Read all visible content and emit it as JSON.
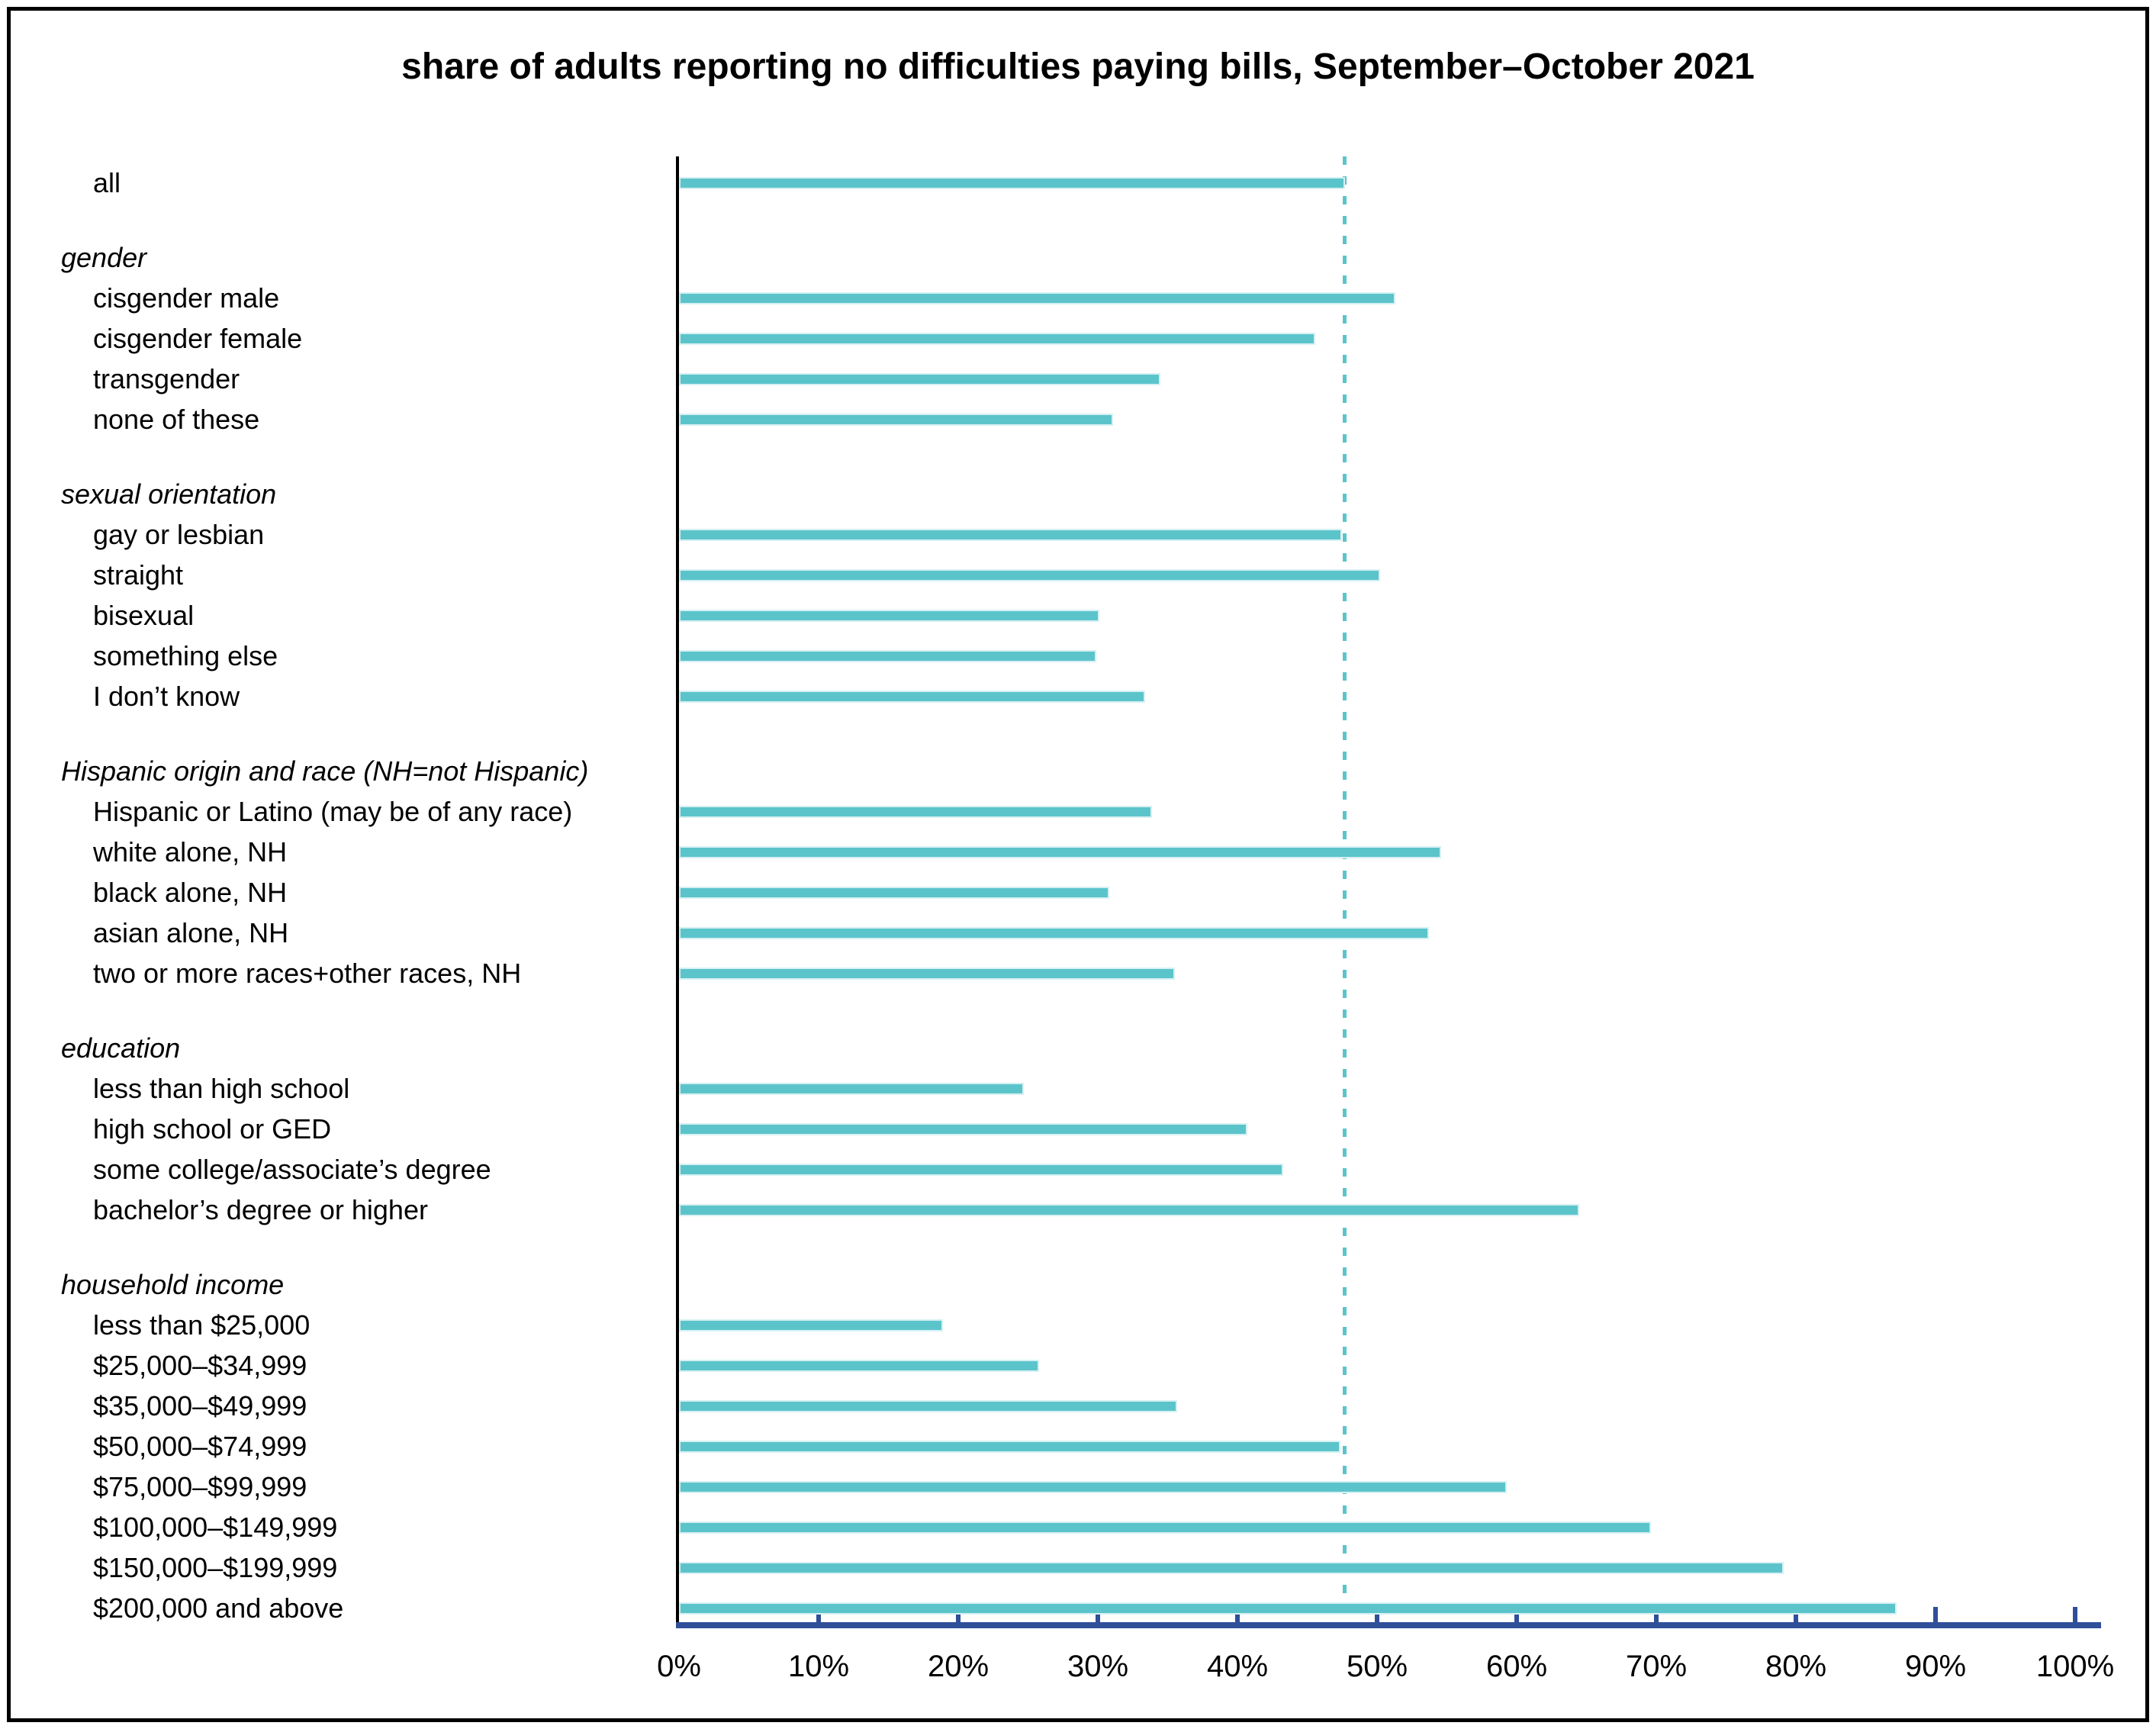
{
  "colors": {
    "bar": "#5bc4cb",
    "bar_edge": "#d6f0f2",
    "axis": "#2f4f99",
    "reference_line": "#5bc4cb",
    "spine": "#000000",
    "frame": "#000000",
    "text": "#000000"
  },
  "chart_data": {
    "type": "bar",
    "orientation": "horizontal",
    "title": "share of adults reporting no difficulties paying bills, September–October 2021",
    "unit": "percent",
    "xlim": [
      0,
      100
    ],
    "x_tick_labels": [
      "0%",
      "10%",
      "20%",
      "30%",
      "40%",
      "50%",
      "60%",
      "70%",
      "80%",
      "90%",
      "100%"
    ],
    "grid": false,
    "legend": "none",
    "reference_line_value": 47.7,
    "groups": [
      {
        "header": "",
        "items": [
          {
            "label": "all",
            "value": 47.7
          }
        ]
      },
      {
        "header": "gender",
        "items": [
          {
            "label": "cisgender male",
            "value": 51.3
          },
          {
            "label": "cisgender female",
            "value": 45.6
          },
          {
            "label": "transgender",
            "value": 34.5
          },
          {
            "label": "none of these",
            "value": 31.1
          }
        ]
      },
      {
        "header": "sexual orientation",
        "items": [
          {
            "label": "gay or lesbian",
            "value": 47.5
          },
          {
            "label": "straight",
            "value": 50.2
          },
          {
            "label": "bisexual",
            "value": 30.1
          },
          {
            "label": "something else",
            "value": 29.9
          },
          {
            "label": "I don’t know",
            "value": 33.4
          }
        ]
      },
      {
        "header": "Hispanic origin and race (NH=not Hispanic)",
        "items": [
          {
            "label": "Hispanic or Latino (may be of any race)",
            "value": 33.9
          },
          {
            "label": "white alone, NH",
            "value": 54.6
          },
          {
            "label": "black alone, NH",
            "value": 30.8
          },
          {
            "label": "asian alone, NH",
            "value": 53.7
          },
          {
            "label": "two or more races+other races, NH",
            "value": 35.5
          }
        ]
      },
      {
        "header": "education",
        "items": [
          {
            "label": "less than high school",
            "value": 24.7
          },
          {
            "label": "high school or GED",
            "value": 40.7
          },
          {
            "label": "some college/associate’s degree",
            "value": 43.3
          },
          {
            "label": "bachelor’s degree or higher",
            "value": 64.5
          }
        ]
      },
      {
        "header": "household income",
        "items": [
          {
            "label": "less than $25,000",
            "value": 18.9
          },
          {
            "label": "$25,000–$34,999",
            "value": 25.8
          },
          {
            "label": "$35,000–$49,999",
            "value": 35.7
          },
          {
            "label": "$50,000–$74,999",
            "value": 47.4
          },
          {
            "label": "$75,000–$99,999",
            "value": 59.3
          },
          {
            "label": "$100,000–$149,999",
            "value": 69.6
          },
          {
            "label": "$150,000–$199,999",
            "value": 79.1
          },
          {
            "label": "$200,000 and above",
            "value": 87.2
          }
        ]
      }
    ]
  }
}
